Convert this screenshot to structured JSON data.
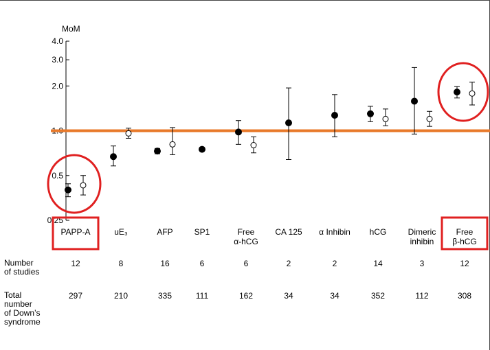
{
  "chart_data": {
    "type": "scatter",
    "ylabel": "MoM",
    "yscale": "log",
    "ylim": [
      0.25,
      4.0
    ],
    "yticks": [
      "4.0",
      "3.0",
      "2.0",
      "1.0",
      "0.5",
      "0.25"
    ],
    "reference_line": 1.0,
    "reference_color": "#e8792a",
    "highlight_color": "#e02020",
    "categories": [
      {
        "line1": "PAPP-A",
        "line2": "",
        "highlight": true
      },
      {
        "line1": "uE₃",
        "line2": "",
        "highlight": false
      },
      {
        "line1": "AFP",
        "line2": "",
        "highlight": false
      },
      {
        "line1": "SP1",
        "line2": "",
        "highlight": false
      },
      {
        "line1": "Free",
        "line2": "α-hCG",
        "highlight": false
      },
      {
        "line1": "CA 125",
        "line2": "",
        "highlight": false
      },
      {
        "line1": "α Inhibin",
        "line2": "",
        "highlight": false
      },
      {
        "line1": "hCG",
        "line2": "",
        "highlight": false
      },
      {
        "line1": "Dimeric",
        "line2": "inhibin",
        "highlight": false
      },
      {
        "line1": "Free",
        "line2": "β-hCG",
        "highlight": true
      }
    ],
    "series": [
      {
        "marker": "filled",
        "points": [
          {
            "cat": 0,
            "y": 0.4,
            "lo": 0.36,
            "hi": 0.44
          },
          {
            "cat": 1,
            "y": 0.67,
            "lo": 0.58,
            "hi": 0.79
          },
          {
            "cat": 2,
            "y": 0.73,
            "lo": 0.7,
            "hi": 0.76
          },
          {
            "cat": 3,
            "y": 0.75,
            "lo": null,
            "hi": null
          },
          {
            "cat": 4,
            "y": 0.98,
            "lo": 0.81,
            "hi": 1.17
          },
          {
            "cat": 5,
            "y": 1.13,
            "lo": 0.64,
            "hi": 1.94
          },
          {
            "cat": 6,
            "y": 1.27,
            "lo": 0.91,
            "hi": 1.75
          },
          {
            "cat": 7,
            "y": 1.3,
            "lo": 1.15,
            "hi": 1.46
          },
          {
            "cat": 8,
            "y": 1.58,
            "lo": 0.95,
            "hi": 2.66
          },
          {
            "cat": 9,
            "y": 1.82,
            "lo": 1.66,
            "hi": 1.98
          }
        ]
      },
      {
        "marker": "open",
        "points": [
          {
            "cat": 0,
            "y": 0.43,
            "lo": 0.37,
            "hi": 0.5
          },
          {
            "cat": 1,
            "y": 0.96,
            "lo": 0.89,
            "hi": 1.04
          },
          {
            "cat": 2,
            "y": 0.81,
            "lo": 0.69,
            "hi": 1.05
          },
          {
            "cat": 4,
            "y": 0.8,
            "lo": 0.71,
            "hi": 0.91
          },
          {
            "cat": 7,
            "y": 1.2,
            "lo": 1.08,
            "hi": 1.4
          },
          {
            "cat": 8,
            "y": 1.2,
            "lo": 1.07,
            "hi": 1.35
          },
          {
            "cat": 9,
            "y": 1.78,
            "lo": 1.49,
            "hi": 2.12
          }
        ]
      }
    ],
    "circled_categories": [
      0,
      9
    ]
  },
  "table": {
    "rows": [
      {
        "head": "Number\nof studies",
        "values": [
          "12",
          "8",
          "16",
          "6",
          "6",
          "2",
          "2",
          "14",
          "3",
          "12"
        ]
      },
      {
        "head": "Total\nnumber\nof Down’s\nsyndrome",
        "values": [
          "297",
          "210",
          "335",
          "111",
          "162",
          "34",
          "34",
          "352",
          "112",
          "308"
        ]
      }
    ]
  }
}
